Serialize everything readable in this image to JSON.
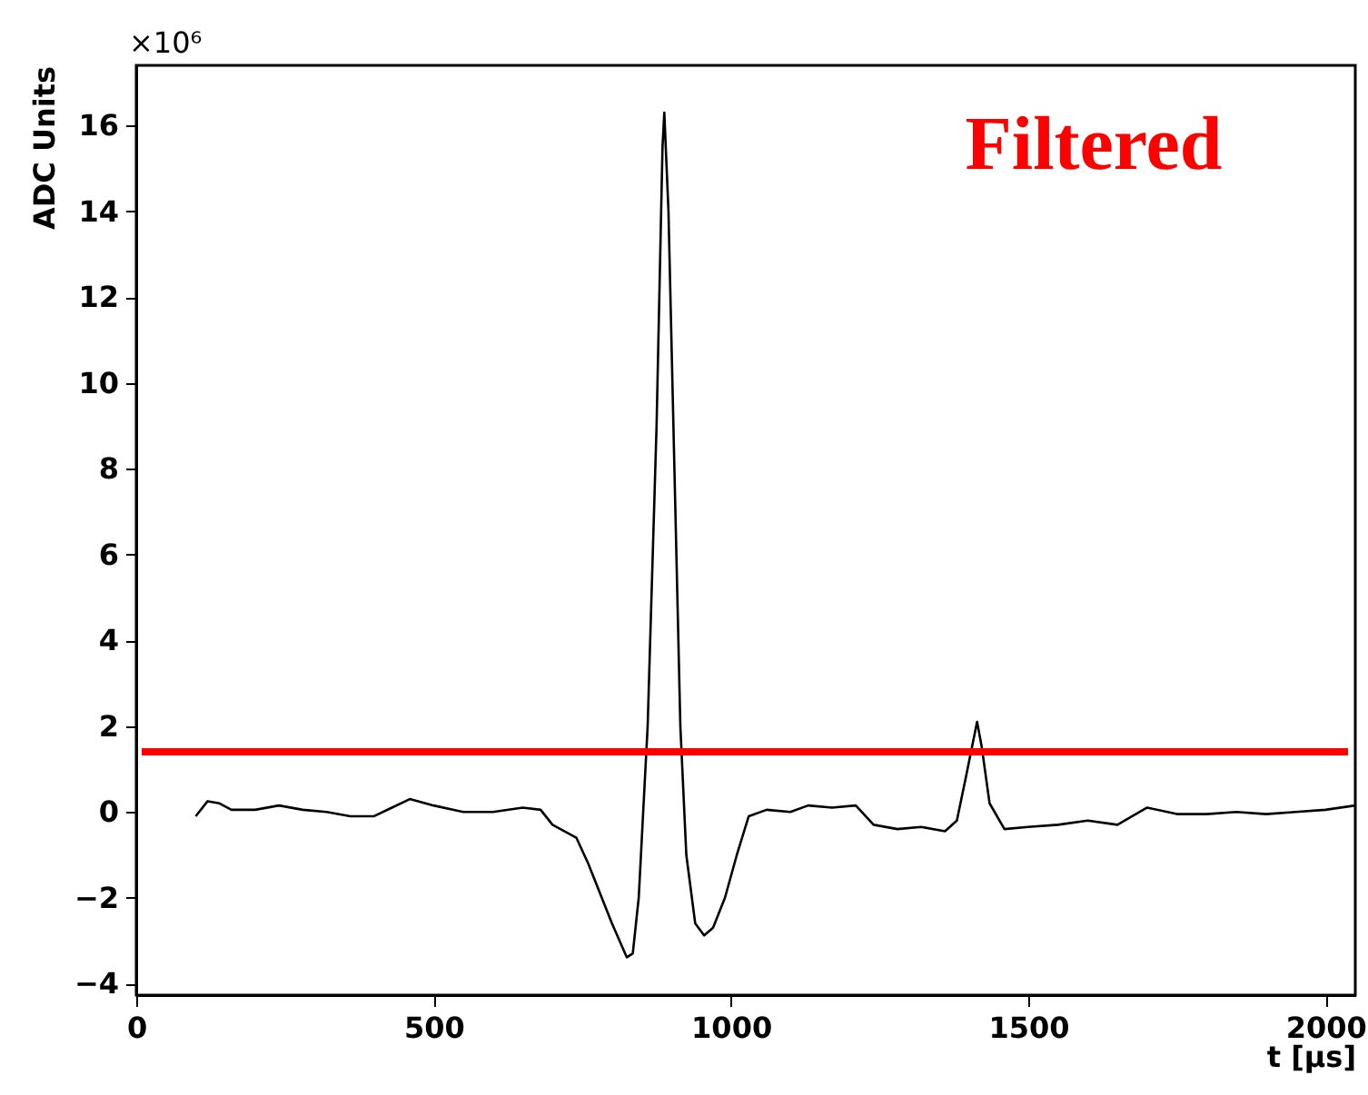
{
  "chart_data": {
    "type": "line",
    "xlabel": "t [μs]",
    "ylabel": "ADC Units",
    "annotations": [
      "×10⁶",
      "Filtered"
    ],
    "x": [
      100,
      120,
      140,
      160,
      200,
      240,
      280,
      320,
      360,
      400,
      430,
      460,
      500,
      550,
      600,
      650,
      680,
      700,
      740,
      760,
      800,
      825,
      835,
      845,
      860,
      875,
      885,
      888,
      895,
      905,
      915,
      925,
      940,
      955,
      970,
      990,
      1010,
      1030,
      1060,
      1100,
      1130,
      1170,
      1210,
      1240,
      1280,
      1320,
      1360,
      1380,
      1395,
      1414,
      1422,
      1435,
      1460,
      1500,
      1550,
      1600,
      1650,
      1700,
      1750,
      1800,
      1850,
      1900,
      1950,
      2000,
      2050
    ],
    "series": [
      {
        "color": "#000000",
        "values": [
          -0.1,
          0.25,
          0.2,
          0.05,
          0.05,
          0.15,
          0.05,
          0.0,
          -0.1,
          -0.1,
          0.1,
          0.3,
          0.15,
          0.0,
          0.0,
          0.1,
          0.05,
          -0.3,
          -0.6,
          -1.2,
          -2.6,
          -3.39,
          -3.3,
          -2.0,
          2.0,
          9.0,
          15.5,
          16.3,
          14.0,
          8.0,
          2.0,
          -1.0,
          -2.6,
          -2.88,
          -2.7,
          -2.0,
          -1.0,
          -0.1,
          0.05,
          0.0,
          0.15,
          0.1,
          0.15,
          -0.3,
          -0.4,
          -0.35,
          -0.45,
          -0.2,
          0.8,
          2.1,
          1.5,
          0.2,
          -0.4,
          -0.35,
          -0.3,
          -0.2,
          -0.3,
          0.1,
          -0.05,
          -0.05,
          0.0,
          -0.05,
          0.0,
          0.05,
          0.15
        ]
      }
    ],
    "xlim": [
      0,
      2050
    ],
    "xticks": [
      0,
      500,
      1000,
      1500,
      2000
    ],
    "ylim": [
      -4.27,
      17.4
    ],
    "yticks": [
      -4,
      -2,
      0,
      2,
      4,
      6,
      8,
      10,
      12,
      14,
      16
    ],
    "ref_lines": [
      {
        "axis": "y",
        "value": 1.4,
        "color": "#ff0000"
      }
    ],
    "marker": "none",
    "line_style": "solid",
    "grid": false
  }
}
